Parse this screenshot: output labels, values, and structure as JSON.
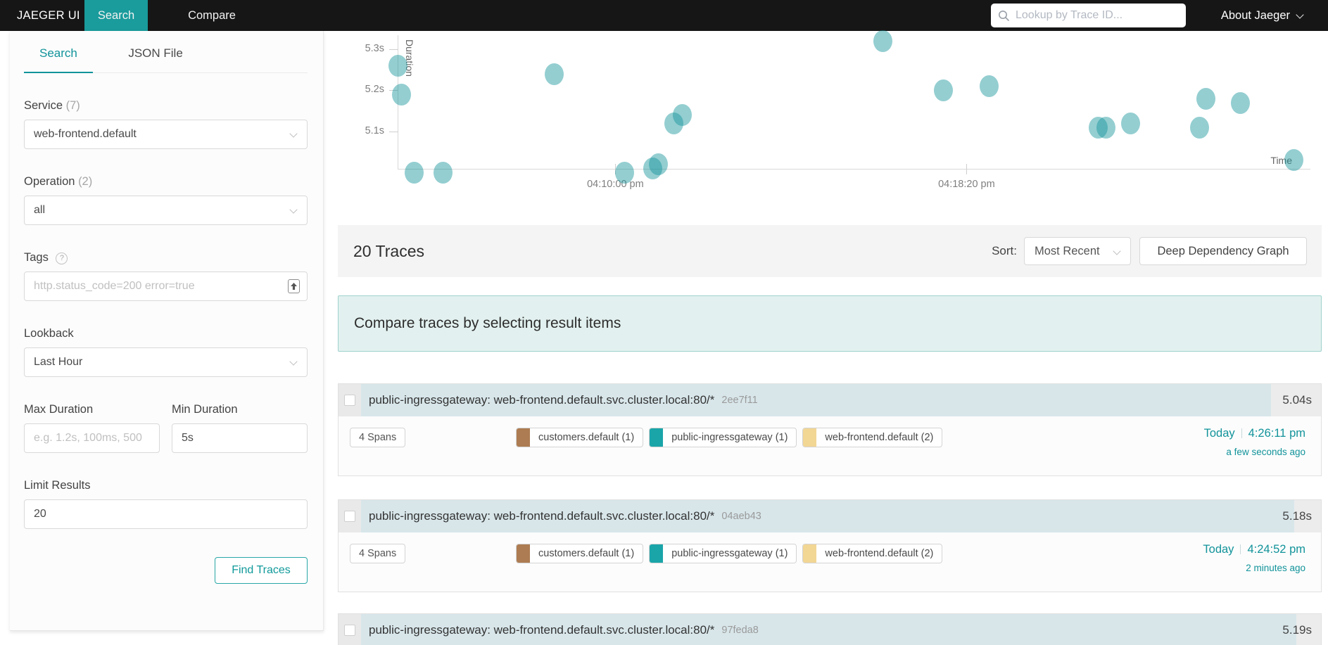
{
  "nav": {
    "brand": "JAEGER UI",
    "tabs": [
      {
        "label": "Search",
        "active": true
      },
      {
        "label": "Compare",
        "active": false
      }
    ],
    "trace_lookup_placeholder": "Lookup by Trace ID...",
    "about": "About Jaeger"
  },
  "colors": {
    "accent_teal": "#11939a",
    "nav_active_bg": "#1a9b9c",
    "banner_bg": "#e2f1ef",
    "scatter_dot": "#12939a",
    "duration_bar": "#d8e6ea"
  },
  "sidebar": {
    "tabs": [
      {
        "label": "Search",
        "active": true
      },
      {
        "label": "JSON File",
        "active": false
      }
    ],
    "service": {
      "label": "Service",
      "count": "(7)",
      "value": "web-frontend.default"
    },
    "operation": {
      "label": "Operation",
      "count": "(2)",
      "value": "all"
    },
    "tags": {
      "label": "Tags",
      "placeholder": "http.status_code=200 error=true"
    },
    "lookback": {
      "label": "Lookback",
      "value": "Last Hour"
    },
    "max_duration": {
      "label": "Max Duration",
      "placeholder": "e.g. 1.2s, 100ms, 500"
    },
    "min_duration": {
      "label": "Min Duration",
      "value": "5s"
    },
    "limit": {
      "label": "Limit Results",
      "value": "20"
    },
    "find_button": "Find Traces"
  },
  "results": {
    "count_title": "20 Traces",
    "sort_label": "Sort:",
    "sort_value": "Most Recent",
    "ddg_button": "Deep Dependency Graph",
    "compare_banner": "Compare traces by selecting result items"
  },
  "chart_data": {
    "type": "scatter",
    "xlabel": "Time",
    "ylabel": "Duration",
    "point_color": "#12939a",
    "y_min": 5.0,
    "y_ticks": [
      {
        "value": 5.1,
        "label": "5.1s"
      },
      {
        "value": 5.2,
        "label": "5.2s"
      },
      {
        "value": 5.3,
        "label": "5.3s"
      }
    ],
    "x_ticks": [
      {
        "sec": 310,
        "label": "04:10:00 pm"
      },
      {
        "sec": 810,
        "label": "04:18:20 pm"
      }
    ],
    "x_origin_time": "04:04:50 pm",
    "points": [
      {
        "sec": 0,
        "duration": 5.26
      },
      {
        "sec": 5,
        "duration": 5.19
      },
      {
        "sec": 23,
        "duration": 5.0
      },
      {
        "sec": 64,
        "duration": 5.0
      },
      {
        "sec": 222,
        "duration": 5.24
      },
      {
        "sec": 323,
        "duration": 5.0
      },
      {
        "sec": 363,
        "duration": 5.01
      },
      {
        "sec": 371,
        "duration": 5.02
      },
      {
        "sec": 393,
        "duration": 5.12
      },
      {
        "sec": 405,
        "duration": 5.14
      },
      {
        "sec": 690,
        "duration": 5.32
      },
      {
        "sec": 777,
        "duration": 5.2
      },
      {
        "sec": 842,
        "duration": 5.21
      },
      {
        "sec": 997,
        "duration": 5.11
      },
      {
        "sec": 1008,
        "duration": 5.11
      },
      {
        "sec": 1043,
        "duration": 5.12
      },
      {
        "sec": 1141,
        "duration": 5.11
      },
      {
        "sec": 1150,
        "duration": 5.18
      },
      {
        "sec": 1199,
        "duration": 5.17
      },
      {
        "sec": 1276,
        "duration": 5.03
      }
    ]
  },
  "traces": [
    {
      "title": "public-ingressgateway: web-frontend.default.svc.cluster.local:80/*",
      "trace_id": "2ee7f11",
      "duration": "5.04s",
      "bar_width": "94.8%",
      "spans": "4 Spans",
      "services": [
        {
          "label": "customers.default (1)",
          "color": "#ad7c52"
        },
        {
          "label": "public-ingressgateway (1)",
          "color": "#1aa5a9"
        },
        {
          "label": "web-frontend.default (2)",
          "color": "#f2d694"
        }
      ],
      "day": "Today",
      "time": "4:26:11 pm",
      "age": "a few seconds ago"
    },
    {
      "title": "public-ingressgateway: web-frontend.default.svc.cluster.local:80/*",
      "trace_id": "04aeb43",
      "duration": "5.18s",
      "bar_width": "97.2%",
      "spans": "4 Spans",
      "services": [
        {
          "label": "customers.default (1)",
          "color": "#ad7c52"
        },
        {
          "label": "public-ingressgateway (1)",
          "color": "#1aa5a9"
        },
        {
          "label": "web-frontend.default (2)",
          "color": "#f2d694"
        }
      ],
      "day": "Today",
      "time": "4:24:52 pm",
      "age": "2 minutes ago"
    },
    {
      "title": "public-ingressgateway: web-frontend.default.svc.cluster.local:80/*",
      "trace_id": "97feda8",
      "duration": "5.19s",
      "bar_width": "97.4%"
    }
  ]
}
